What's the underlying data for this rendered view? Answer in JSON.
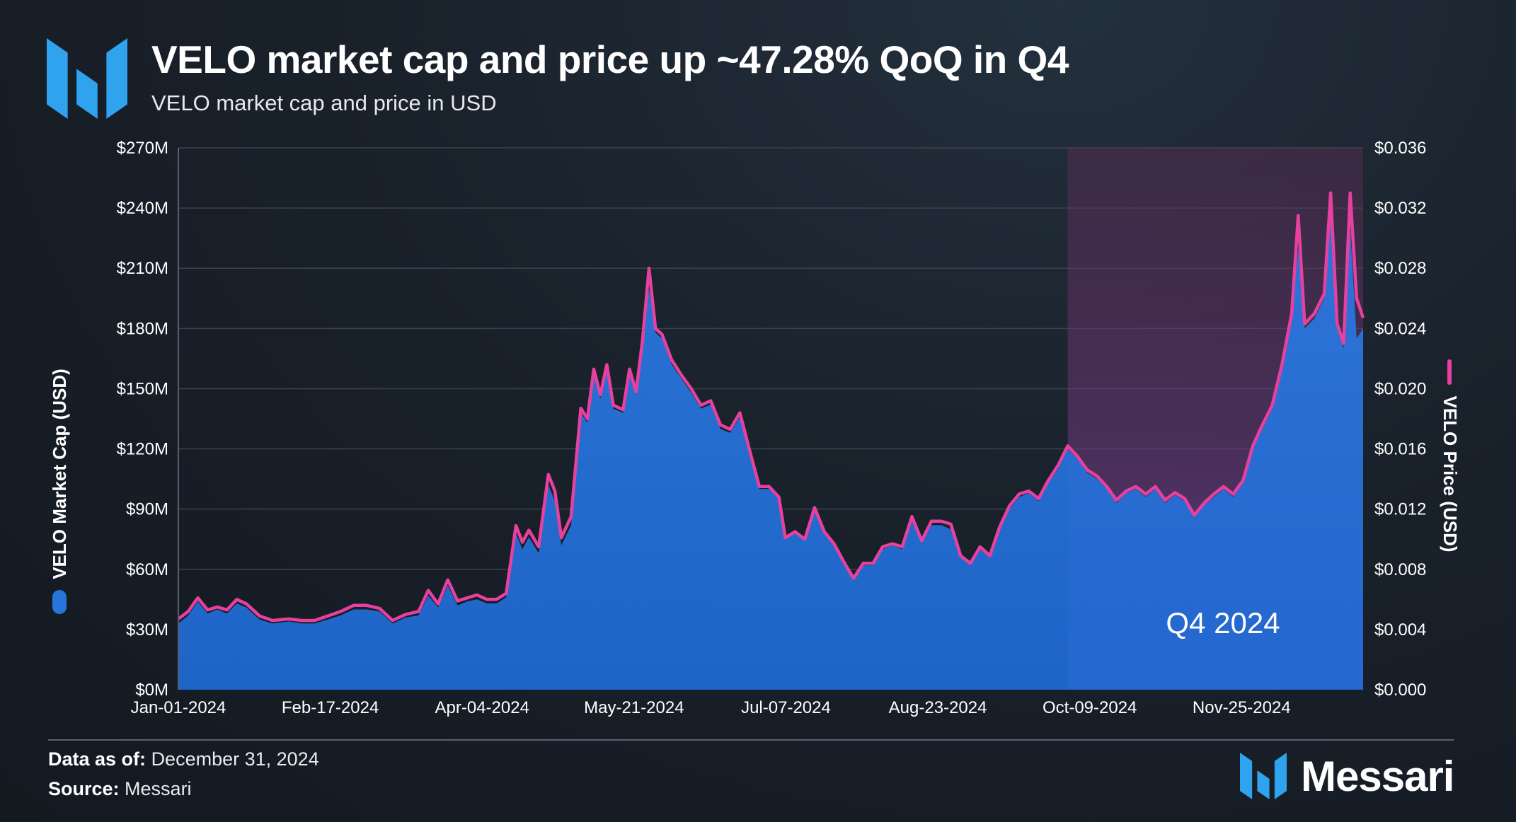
{
  "header": {
    "title": "VELO market cap and price up ~47.28% QoQ in Q4",
    "subtitle": "VELO market cap and price in USD",
    "logo_icon": "messari-logo-icon"
  },
  "footer": {
    "data_as_of_label": "Data as of:",
    "data_as_of_value": "December 31, 2024",
    "source_label": "Source:",
    "source_value": "Messari",
    "brand_name": "Messari"
  },
  "chart_data": {
    "type": "area",
    "title": "VELO market cap and price up ~47.28% QoQ in Q4",
    "subtitle": "VELO market cap and price in USD",
    "x_ticks": [
      "Jan-01-2024",
      "Feb-17-2024",
      "Apr-04-2024",
      "May-21-2024",
      "Jul-07-2024",
      "Aug-23-2024",
      "Oct-09-2024",
      "Nov-25-2024"
    ],
    "y_left": {
      "label": "VELO Market Cap (USD)",
      "ticks": [
        "$0M",
        "$30M",
        "$60M",
        "$90M",
        "$120M",
        "$150M",
        "$180M",
        "$210M",
        "$240M",
        "$270M"
      ],
      "range": [
        0,
        270
      ],
      "unit": "USD millions"
    },
    "y_right": {
      "label": "VELO Price (USD)",
      "ticks": [
        "$0.000",
        "$0.004",
        "$0.008",
        "$0.012",
        "$0.016",
        "$0.020",
        "$0.024",
        "$0.028",
        "$0.032",
        "$0.036"
      ],
      "range": [
        0,
        0.036
      ]
    },
    "x_range": [
      "2024-01-01",
      "2024-12-31"
    ],
    "grid": true,
    "highlight": {
      "label": "Q4 2024",
      "start": "2024-10-01",
      "end": "2024-12-31",
      "color": "#6a2f73"
    },
    "series": [
      {
        "name": "VELO Market Cap (USD)",
        "axis": "left",
        "kind": "area",
        "color": "#2775dc",
        "points": [
          [
            "2024-01-01",
            33
          ],
          [
            "2024-01-04",
            37
          ],
          [
            "2024-01-07",
            44
          ],
          [
            "2024-01-10",
            38
          ],
          [
            "2024-01-13",
            40
          ],
          [
            "2024-01-16",
            38
          ],
          [
            "2024-01-19",
            43
          ],
          [
            "2024-01-22",
            41
          ],
          [
            "2024-01-26",
            35
          ],
          [
            "2024-01-30",
            33
          ],
          [
            "2024-02-04",
            34
          ],
          [
            "2024-02-08",
            33
          ],
          [
            "2024-02-12",
            33
          ],
          [
            "2024-02-16",
            35
          ],
          [
            "2024-02-20",
            37
          ],
          [
            "2024-02-24",
            40
          ],
          [
            "2024-02-28",
            40
          ],
          [
            "2024-03-03",
            39
          ],
          [
            "2024-03-07",
            33
          ],
          [
            "2024-03-11",
            36
          ],
          [
            "2024-03-15",
            37
          ],
          [
            "2024-03-18",
            47
          ],
          [
            "2024-03-21",
            41
          ],
          [
            "2024-03-24",
            52
          ],
          [
            "2024-03-27",
            42
          ],
          [
            "2024-03-30",
            44
          ],
          [
            "2024-04-02",
            45
          ],
          [
            "2024-04-05",
            43
          ],
          [
            "2024-04-08",
            43
          ],
          [
            "2024-04-11",
            46
          ],
          [
            "2024-04-14",
            78
          ],
          [
            "2024-04-16",
            70
          ],
          [
            "2024-04-18",
            76
          ],
          [
            "2024-04-21",
            68
          ],
          [
            "2024-04-24",
            102
          ],
          [
            "2024-04-26",
            94
          ],
          [
            "2024-04-28",
            72
          ],
          [
            "2024-05-01",
            82
          ],
          [
            "2024-05-04",
            138
          ],
          [
            "2024-05-06",
            133
          ],
          [
            "2024-05-08",
            158
          ],
          [
            "2024-05-10",
            145
          ],
          [
            "2024-05-12",
            160
          ],
          [
            "2024-05-14",
            140
          ],
          [
            "2024-05-17",
            138
          ],
          [
            "2024-05-19",
            158
          ],
          [
            "2024-05-21",
            147
          ],
          [
            "2024-05-23",
            172
          ],
          [
            "2024-05-25",
            200
          ],
          [
            "2024-05-27",
            178
          ],
          [
            "2024-05-29",
            175
          ],
          [
            "2024-06-01",
            162
          ],
          [
            "2024-06-04",
            155
          ],
          [
            "2024-06-07",
            148
          ],
          [
            "2024-06-10",
            140
          ],
          [
            "2024-06-13",
            142
          ],
          [
            "2024-06-16",
            130
          ],
          [
            "2024-06-19",
            128
          ],
          [
            "2024-06-22",
            136
          ],
          [
            "2024-06-25",
            118
          ],
          [
            "2024-06-28",
            100
          ],
          [
            "2024-07-01",
            100
          ],
          [
            "2024-07-04",
            95
          ],
          [
            "2024-07-06",
            75
          ],
          [
            "2024-07-09",
            78
          ],
          [
            "2024-07-12",
            74
          ],
          [
            "2024-07-15",
            90
          ],
          [
            "2024-07-18",
            78
          ],
          [
            "2024-07-21",
            72
          ],
          [
            "2024-07-24",
            63
          ],
          [
            "2024-07-27",
            55
          ],
          [
            "2024-07-30",
            62
          ],
          [
            "2024-08-02",
            62
          ],
          [
            "2024-08-05",
            70
          ],
          [
            "2024-08-08",
            72
          ],
          [
            "2024-08-11",
            70
          ],
          [
            "2024-08-14",
            84
          ],
          [
            "2024-08-17",
            73
          ],
          [
            "2024-08-20",
            82
          ],
          [
            "2024-08-23",
            82
          ],
          [
            "2024-08-26",
            80
          ],
          [
            "2024-08-29",
            66
          ],
          [
            "2024-09-01",
            62
          ],
          [
            "2024-09-04",
            70
          ],
          [
            "2024-09-07",
            66
          ],
          [
            "2024-09-10",
            80
          ],
          [
            "2024-09-13",
            90
          ],
          [
            "2024-09-16",
            96
          ],
          [
            "2024-09-19",
            98
          ],
          [
            "2024-09-22",
            94
          ],
          [
            "2024-09-25",
            103
          ],
          [
            "2024-09-28",
            110
          ],
          [
            "2024-10-01",
            120
          ],
          [
            "2024-10-04",
            115
          ],
          [
            "2024-10-07",
            108
          ],
          [
            "2024-10-10",
            105
          ],
          [
            "2024-10-13",
            100
          ],
          [
            "2024-10-16",
            93
          ],
          [
            "2024-10-19",
            98
          ],
          [
            "2024-10-22",
            100
          ],
          [
            "2024-10-25",
            96
          ],
          [
            "2024-10-28",
            100
          ],
          [
            "2024-10-31",
            93
          ],
          [
            "2024-11-03",
            97
          ],
          [
            "2024-11-06",
            94
          ],
          [
            "2024-11-09",
            86
          ],
          [
            "2024-11-12",
            92
          ],
          [
            "2024-11-15",
            96
          ],
          [
            "2024-11-18",
            100
          ],
          [
            "2024-11-21",
            96
          ],
          [
            "2024-11-24",
            103
          ],
          [
            "2024-11-27",
            120
          ],
          [
            "2024-11-30",
            130
          ],
          [
            "2024-12-03",
            140
          ],
          [
            "2024-12-06",
            160
          ],
          [
            "2024-12-09",
            185
          ],
          [
            "2024-12-11",
            220
          ],
          [
            "2024-12-13",
            180
          ],
          [
            "2024-12-16",
            185
          ],
          [
            "2024-12-19",
            195
          ],
          [
            "2024-12-21",
            240
          ],
          [
            "2024-12-23",
            180
          ],
          [
            "2024-12-25",
            170
          ],
          [
            "2024-12-27",
            230
          ],
          [
            "2024-12-29",
            175
          ],
          [
            "2024-12-31",
            180
          ]
        ]
      },
      {
        "name": "VELO Price (USD)",
        "axis": "right",
        "kind": "line",
        "color": "#e8409e",
        "points": [
          [
            "2024-01-01",
            0.0047
          ],
          [
            "2024-01-04",
            0.0052
          ],
          [
            "2024-01-07",
            0.0061
          ],
          [
            "2024-01-10",
            0.0053
          ],
          [
            "2024-01-13",
            0.0055
          ],
          [
            "2024-01-16",
            0.0053
          ],
          [
            "2024-01-19",
            0.006
          ],
          [
            "2024-01-22",
            0.0057
          ],
          [
            "2024-01-26",
            0.0049
          ],
          [
            "2024-01-30",
            0.0046
          ],
          [
            "2024-02-04",
            0.0047
          ],
          [
            "2024-02-08",
            0.0046
          ],
          [
            "2024-02-12",
            0.0046
          ],
          [
            "2024-02-16",
            0.0049
          ],
          [
            "2024-02-20",
            0.0052
          ],
          [
            "2024-02-24",
            0.0056
          ],
          [
            "2024-02-28",
            0.0056
          ],
          [
            "2024-03-03",
            0.0054
          ],
          [
            "2024-03-07",
            0.0046
          ],
          [
            "2024-03-11",
            0.005
          ],
          [
            "2024-03-15",
            0.0052
          ],
          [
            "2024-03-18",
            0.0066
          ],
          [
            "2024-03-21",
            0.0057
          ],
          [
            "2024-03-24",
            0.0073
          ],
          [
            "2024-03-27",
            0.0059
          ],
          [
            "2024-03-30",
            0.0061
          ],
          [
            "2024-04-02",
            0.0063
          ],
          [
            "2024-04-05",
            0.006
          ],
          [
            "2024-04-08",
            0.006
          ],
          [
            "2024-04-11",
            0.0064
          ],
          [
            "2024-04-14",
            0.0109
          ],
          [
            "2024-04-16",
            0.0098
          ],
          [
            "2024-04-18",
            0.0106
          ],
          [
            "2024-04-21",
            0.0095
          ],
          [
            "2024-04-24",
            0.0143
          ],
          [
            "2024-04-26",
            0.0132
          ],
          [
            "2024-04-28",
            0.0101
          ],
          [
            "2024-05-01",
            0.0115
          ],
          [
            "2024-05-04",
            0.0187
          ],
          [
            "2024-05-06",
            0.018
          ],
          [
            "2024-05-08",
            0.0213
          ],
          [
            "2024-05-10",
            0.0196
          ],
          [
            "2024-05-12",
            0.0216
          ],
          [
            "2024-05-14",
            0.0189
          ],
          [
            "2024-05-17",
            0.0186
          ],
          [
            "2024-05-19",
            0.0213
          ],
          [
            "2024-05-21",
            0.0198
          ],
          [
            "2024-05-23",
            0.0232
          ],
          [
            "2024-05-25",
            0.028
          ],
          [
            "2024-05-27",
            0.024
          ],
          [
            "2024-05-29",
            0.0236
          ],
          [
            "2024-06-01",
            0.0219
          ],
          [
            "2024-06-04",
            0.0209
          ],
          [
            "2024-06-07",
            0.02
          ],
          [
            "2024-06-10",
            0.0189
          ],
          [
            "2024-06-13",
            0.0192
          ],
          [
            "2024-06-16",
            0.0176
          ],
          [
            "2024-06-19",
            0.0173
          ],
          [
            "2024-06-22",
            0.0184
          ],
          [
            "2024-06-25",
            0.0159
          ],
          [
            "2024-06-28",
            0.0135
          ],
          [
            "2024-07-01",
            0.0135
          ],
          [
            "2024-07-04",
            0.0128
          ],
          [
            "2024-07-06",
            0.0101
          ],
          [
            "2024-07-09",
            0.0105
          ],
          [
            "2024-07-12",
            0.01
          ],
          [
            "2024-07-15",
            0.0121
          ],
          [
            "2024-07-18",
            0.0105
          ],
          [
            "2024-07-21",
            0.0097
          ],
          [
            "2024-07-24",
            0.0085
          ],
          [
            "2024-07-27",
            0.0074
          ],
          [
            "2024-07-30",
            0.0084
          ],
          [
            "2024-08-02",
            0.0084
          ],
          [
            "2024-08-05",
            0.0095
          ],
          [
            "2024-08-08",
            0.0097
          ],
          [
            "2024-08-11",
            0.0095
          ],
          [
            "2024-08-14",
            0.0115
          ],
          [
            "2024-08-17",
            0.0099
          ],
          [
            "2024-08-20",
            0.0112
          ],
          [
            "2024-08-23",
            0.0112
          ],
          [
            "2024-08-26",
            0.011
          ],
          [
            "2024-08-29",
            0.0089
          ],
          [
            "2024-09-01",
            0.0084
          ],
          [
            "2024-09-04",
            0.0095
          ],
          [
            "2024-09-07",
            0.0089
          ],
          [
            "2024-09-10",
            0.0108
          ],
          [
            "2024-09-13",
            0.0122
          ],
          [
            "2024-09-16",
            0.013
          ],
          [
            "2024-09-19",
            0.0132
          ],
          [
            "2024-09-22",
            0.0127
          ],
          [
            "2024-09-25",
            0.0139
          ],
          [
            "2024-09-28",
            0.0149
          ],
          [
            "2024-10-01",
            0.0162
          ],
          [
            "2024-10-04",
            0.0155
          ],
          [
            "2024-10-07",
            0.0146
          ],
          [
            "2024-10-10",
            0.0142
          ],
          [
            "2024-10-13",
            0.0135
          ],
          [
            "2024-10-16",
            0.0126
          ],
          [
            "2024-10-19",
            0.0132
          ],
          [
            "2024-10-22",
            0.0135
          ],
          [
            "2024-10-25",
            0.013
          ],
          [
            "2024-10-28",
            0.0135
          ],
          [
            "2024-10-31",
            0.0126
          ],
          [
            "2024-11-03",
            0.0131
          ],
          [
            "2024-11-06",
            0.0127
          ],
          [
            "2024-11-09",
            0.0116
          ],
          [
            "2024-11-12",
            0.0124
          ],
          [
            "2024-11-15",
            0.013
          ],
          [
            "2024-11-18",
            0.0135
          ],
          [
            "2024-11-21",
            0.013
          ],
          [
            "2024-11-24",
            0.0139
          ],
          [
            "2024-11-27",
            0.0162
          ],
          [
            "2024-11-30",
            0.0176
          ],
          [
            "2024-12-03",
            0.0189
          ],
          [
            "2024-12-06",
            0.0216
          ],
          [
            "2024-12-09",
            0.025
          ],
          [
            "2024-12-11",
            0.0315
          ],
          [
            "2024-12-13",
            0.0243
          ],
          [
            "2024-12-16",
            0.025
          ],
          [
            "2024-12-19",
            0.0263
          ],
          [
            "2024-12-21",
            0.033
          ],
          [
            "2024-12-23",
            0.0243
          ],
          [
            "2024-12-25",
            0.023
          ],
          [
            "2024-12-27",
            0.033
          ],
          [
            "2024-12-29",
            0.026
          ],
          [
            "2024-12-31",
            0.0247
          ]
        ]
      }
    ]
  }
}
